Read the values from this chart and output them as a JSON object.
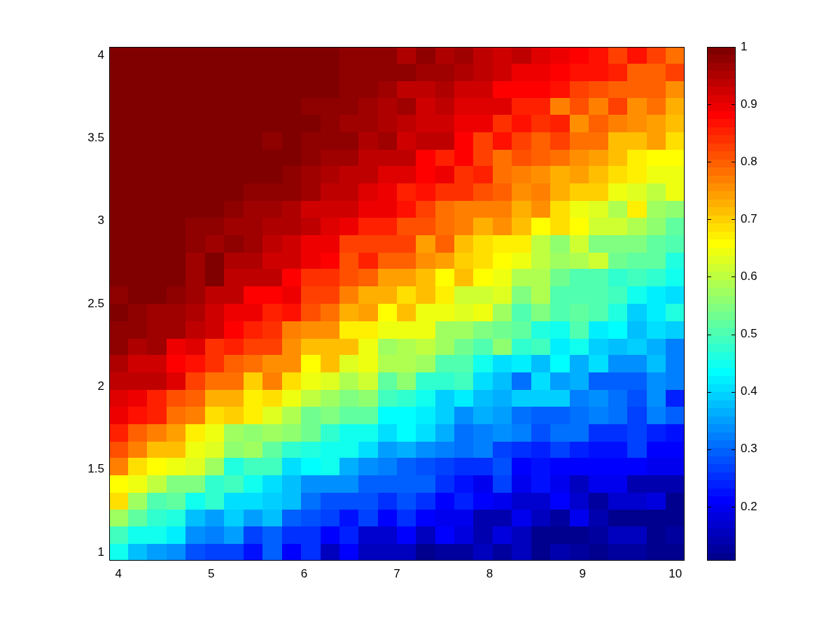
{
  "chart_data": {
    "type": "heatmap",
    "x": [
      4,
      4.21,
      4.41,
      4.62,
      4.83,
      5.03,
      5.24,
      5.45,
      5.66,
      5.86,
      6.07,
      6.28,
      6.48,
      6.69,
      6.9,
      7.1,
      7.31,
      7.52,
      7.72,
      7.93,
      8.14,
      8.34,
      8.55,
      8.76,
      8.97,
      9.17,
      9.38,
      9.59,
      9.79,
      10
    ],
    "y": [
      4,
      3.9,
      3.79,
      3.69,
      3.59,
      3.48,
      3.38,
      3.28,
      3.17,
      3.07,
      2.97,
      2.86,
      2.76,
      2.66,
      2.55,
      2.45,
      2.34,
      2.24,
      2.14,
      2.03,
      1.93,
      1.83,
      1.72,
      1.62,
      1.52,
      1.41,
      1.31,
      1.21,
      1.1,
      1
    ],
    "xlim": [
      3.9,
      10.1
    ],
    "xticks": [
      4,
      5,
      6,
      7,
      8,
      9,
      10
    ],
    "ylim": [
      0.95,
      4.05
    ],
    "yticks": [
      1,
      1.5,
      2,
      2.5,
      3,
      3.5,
      4
    ],
    "clim": [
      0.106,
      1
    ],
    "cticks": [
      0.2,
      0.3,
      0.4,
      0.5,
      0.6,
      0.7,
      0.8,
      0.9,
      1
    ],
    "cells": [
      [
        1,
        1,
        1,
        1,
        1,
        1,
        1,
        1,
        1,
        1,
        1,
        1,
        0.98,
        0.98,
        0.98,
        0.95,
        0.98,
        0.95,
        0.97,
        0.94,
        0.92,
        0.94,
        0.91,
        0.9,
        0.88,
        0.87,
        0.83,
        0.87,
        0.83,
        0.78
      ],
      [
        1,
        1,
        1,
        1,
        1,
        1,
        1,
        1,
        1,
        1,
        1,
        1,
        0.98,
        0.98,
        0.98,
        0.98,
        0.97,
        0.97,
        0.95,
        0.94,
        0.92,
        0.9,
        0.9,
        0.88,
        0.87,
        0.87,
        0.85,
        0.8,
        0.8,
        0.82
      ],
      [
        1,
        1,
        1,
        1,
        1,
        1,
        1,
        1,
        1,
        1,
        1,
        1,
        0.98,
        0.98,
        0.97,
        0.94,
        0.94,
        0.95,
        0.92,
        0.92,
        0.88,
        0.88,
        0.88,
        0.87,
        0.83,
        0.81,
        0.8,
        0.8,
        0.8,
        0.76
      ],
      [
        1,
        1,
        1,
        1,
        1,
        1,
        1,
        1,
        1,
        1,
        0.98,
        0.98,
        0.98,
        0.97,
        0.95,
        0.97,
        0.92,
        0.94,
        0.91,
        0.91,
        0.91,
        0.85,
        0.85,
        0.77,
        0.81,
        0.77,
        0.83,
        0.76,
        0.78,
        0.73
      ],
      [
        1,
        1,
        1,
        1,
        1,
        1,
        1,
        1,
        1,
        1,
        1,
        0.98,
        0.97,
        0.97,
        0.95,
        0.94,
        0.92,
        0.92,
        0.9,
        0.9,
        0.84,
        0.87,
        0.84,
        0.85,
        0.76,
        0.8,
        0.77,
        0.76,
        0.74,
        0.71
      ],
      [
        1,
        1,
        1,
        1,
        1,
        1,
        1,
        1,
        0.98,
        1,
        0.98,
        0.98,
        0.98,
        0.95,
        0.97,
        0.92,
        0.94,
        0.94,
        0.88,
        0.83,
        0.87,
        0.83,
        0.8,
        0.82,
        0.78,
        0.78,
        0.71,
        0.71,
        0.74,
        0.69
      ],
      [
        1,
        1,
        1,
        1,
        1,
        1,
        1,
        1,
        1,
        1,
        0.98,
        0.97,
        0.96,
        0.94,
        0.94,
        0.94,
        0.88,
        0.85,
        0.88,
        0.83,
        0.78,
        0.81,
        0.8,
        0.78,
        0.76,
        0.74,
        0.71,
        0.67,
        0.66,
        0.66
      ],
      [
        1,
        1,
        1,
        1,
        1,
        1,
        1,
        1,
        1,
        0.98,
        0.97,
        0.95,
        0.94,
        0.94,
        0.91,
        0.91,
        0.88,
        0.9,
        0.84,
        0.85,
        0.78,
        0.77,
        0.76,
        0.73,
        0.74,
        0.71,
        0.69,
        0.67,
        0.64,
        0.64
      ],
      [
        1,
        1,
        1,
        1,
        1,
        1,
        1,
        0.98,
        0.98,
        0.98,
        0.97,
        0.94,
        0.94,
        0.91,
        0.9,
        0.85,
        0.87,
        0.84,
        0.84,
        0.81,
        0.8,
        0.76,
        0.77,
        0.73,
        0.7,
        0.7,
        0.64,
        0.63,
        0.6,
        0.64
      ],
      [
        1,
        1,
        1,
        1,
        1,
        1,
        0.98,
        0.97,
        0.97,
        0.95,
        0.92,
        0.92,
        0.92,
        0.9,
        0.9,
        0.87,
        0.83,
        0.78,
        0.77,
        0.77,
        0.77,
        0.73,
        0.75,
        0.69,
        0.64,
        0.63,
        0.59,
        0.67,
        0.57,
        0.56
      ],
      [
        1,
        1,
        1,
        1,
        0.98,
        0.98,
        0.97,
        0.97,
        0.95,
        0.95,
        0.94,
        0.91,
        0.9,
        0.85,
        0.85,
        0.81,
        0.81,
        0.78,
        0.77,
        0.73,
        0.76,
        0.71,
        0.66,
        0.68,
        0.66,
        0.62,
        0.62,
        0.59,
        0.56,
        0.52
      ],
      [
        1,
        1,
        1,
        1,
        0.98,
        0.97,
        0.98,
        0.97,
        0.94,
        0.92,
        0.9,
        0.9,
        0.83,
        0.82,
        0.82,
        0.83,
        0.74,
        0.8,
        0.71,
        0.69,
        0.67,
        0.67,
        0.6,
        0.56,
        0.62,
        0.55,
        0.55,
        0.55,
        0.52,
        0.5
      ],
      [
        1,
        1,
        1,
        1,
        0.97,
        1,
        0.95,
        0.95,
        0.92,
        0.92,
        0.9,
        0.88,
        0.81,
        0.85,
        0.8,
        0.8,
        0.76,
        0.74,
        0.7,
        0.69,
        0.66,
        0.64,
        0.6,
        0.57,
        0.59,
        0.61,
        0.53,
        0.52,
        0.52,
        0.46
      ],
      [
        1,
        1,
        1,
        1,
        0.97,
        1,
        0.94,
        0.94,
        0.94,
        0.88,
        0.84,
        0.84,
        0.81,
        0.8,
        0.74,
        0.74,
        0.71,
        0.66,
        0.71,
        0.66,
        0.64,
        0.59,
        0.59,
        0.53,
        0.5,
        0.5,
        0.48,
        0.49,
        0.48,
        0.45
      ],
      [
        0.98,
        1,
        1,
        0.98,
        0.97,
        0.94,
        0.94,
        0.88,
        0.88,
        0.9,
        0.83,
        0.83,
        0.77,
        0.73,
        0.73,
        0.69,
        0.71,
        0.67,
        0.62,
        0.62,
        0.63,
        0.55,
        0.59,
        0.5,
        0.5,
        0.5,
        0.49,
        0.45,
        0.42,
        0.41
      ],
      [
        1,
        0.98,
        0.97,
        0.97,
        0.95,
        0.92,
        0.9,
        0.9,
        0.85,
        0.87,
        0.81,
        0.78,
        0.73,
        0.74,
        0.66,
        0.72,
        0.65,
        0.64,
        0.63,
        0.64,
        0.57,
        0.5,
        0.55,
        0.5,
        0.52,
        0.5,
        0.46,
        0.39,
        0.42,
        0.46
      ],
      [
        0.98,
        0.98,
        0.96,
        0.96,
        0.94,
        0.92,
        0.88,
        0.85,
        0.84,
        0.77,
        0.76,
        0.76,
        0.67,
        0.67,
        0.64,
        0.64,
        0.64,
        0.57,
        0.57,
        0.55,
        0.53,
        0.52,
        0.46,
        0.45,
        0.5,
        0.42,
        0.43,
        0.38,
        0.4,
        0.39
      ],
      [
        0.98,
        0.95,
        0.96,
        0.9,
        0.91,
        0.84,
        0.85,
        0.83,
        0.82,
        0.76,
        0.71,
        0.71,
        0.71,
        0.65,
        0.57,
        0.59,
        0.6,
        0.57,
        0.53,
        0.5,
        0.56,
        0.48,
        0.49,
        0.42,
        0.45,
        0.39,
        0.38,
        0.39,
        0.36,
        0.32
      ],
      [
        0.95,
        0.92,
        0.92,
        0.88,
        0.87,
        0.84,
        0.8,
        0.78,
        0.76,
        0.76,
        0.66,
        0.71,
        0.63,
        0.64,
        0.59,
        0.59,
        0.57,
        0.5,
        0.5,
        0.45,
        0.41,
        0.42,
        0.38,
        0.43,
        0.36,
        0.41,
        0.34,
        0.34,
        0.38,
        0.32
      ],
      [
        0.94,
        0.94,
        0.94,
        0.91,
        0.83,
        0.78,
        0.78,
        0.7,
        0.77,
        0.68,
        0.64,
        0.63,
        0.59,
        0.61,
        0.52,
        0.56,
        0.48,
        0.48,
        0.49,
        0.41,
        0.38,
        0.31,
        0.41,
        0.35,
        0.36,
        0.29,
        0.29,
        0.29,
        0.34,
        0.32
      ],
      [
        0.91,
        0.9,
        0.85,
        0.81,
        0.8,
        0.73,
        0.73,
        0.67,
        0.69,
        0.64,
        0.6,
        0.57,
        0.55,
        0.56,
        0.49,
        0.48,
        0.45,
        0.39,
        0.42,
        0.38,
        0.36,
        0.39,
        0.39,
        0.39,
        0.32,
        0.34,
        0.31,
        0.28,
        0.33,
        0.24
      ],
      [
        0.9,
        0.87,
        0.85,
        0.78,
        0.77,
        0.69,
        0.7,
        0.67,
        0.63,
        0.59,
        0.53,
        0.55,
        0.52,
        0.52,
        0.43,
        0.43,
        0.42,
        0.39,
        0.34,
        0.36,
        0.35,
        0.31,
        0.29,
        0.29,
        0.31,
        0.32,
        0.31,
        0.27,
        0.32,
        0.29
      ],
      [
        0.85,
        0.8,
        0.77,
        0.74,
        0.67,
        0.64,
        0.57,
        0.56,
        0.57,
        0.56,
        0.53,
        0.48,
        0.45,
        0.45,
        0.41,
        0.43,
        0.4,
        0.36,
        0.31,
        0.32,
        0.34,
        0.32,
        0.28,
        0.31,
        0.31,
        0.25,
        0.25,
        0.27,
        0.24,
        0.22
      ],
      [
        0.81,
        0.77,
        0.71,
        0.71,
        0.64,
        0.63,
        0.56,
        0.57,
        0.52,
        0.48,
        0.46,
        0.45,
        0.45,
        0.41,
        0.35,
        0.36,
        0.34,
        0.32,
        0.31,
        0.32,
        0.27,
        0.25,
        0.24,
        0.27,
        0.24,
        0.22,
        0.22,
        0.27,
        0.21,
        0.21
      ],
      [
        0.77,
        0.69,
        0.66,
        0.64,
        0.63,
        0.57,
        0.46,
        0.49,
        0.49,
        0.41,
        0.43,
        0.45,
        0.36,
        0.34,
        0.32,
        0.29,
        0.28,
        0.27,
        0.25,
        0.25,
        0.28,
        0.21,
        0.22,
        0.21,
        0.21,
        0.21,
        0.21,
        0.21,
        0.19,
        0.19
      ],
      [
        0.66,
        0.64,
        0.6,
        0.55,
        0.55,
        0.48,
        0.49,
        0.45,
        0.41,
        0.38,
        0.34,
        0.34,
        0.34,
        0.29,
        0.29,
        0.29,
        0.29,
        0.25,
        0.22,
        0.2,
        0.27,
        0.2,
        0.22,
        0.2,
        0.15,
        0.2,
        0.19,
        0.14,
        0.14,
        0.14
      ],
      [
        0.69,
        0.57,
        0.5,
        0.52,
        0.45,
        0.48,
        0.41,
        0.41,
        0.39,
        0.38,
        0.31,
        0.28,
        0.28,
        0.28,
        0.25,
        0.28,
        0.25,
        0.21,
        0.24,
        0.21,
        0.2,
        0.17,
        0.17,
        0.21,
        0.17,
        0.13,
        0.17,
        0.17,
        0.18,
        0.11
      ],
      [
        0.57,
        0.52,
        0.48,
        0.46,
        0.38,
        0.35,
        0.39,
        0.35,
        0.38,
        0.29,
        0.28,
        0.27,
        0.22,
        0.27,
        0.21,
        0.25,
        0.21,
        0.2,
        0.2,
        0.14,
        0.14,
        0.2,
        0.15,
        0.13,
        0.2,
        0.14,
        0.11,
        0.11,
        0.11,
        0.11
      ],
      [
        0.49,
        0.45,
        0.45,
        0.42,
        0.34,
        0.32,
        0.35,
        0.27,
        0.29,
        0.25,
        0.25,
        0.21,
        0.24,
        0.17,
        0.17,
        0.21,
        0.15,
        0.21,
        0.18,
        0.14,
        0.18,
        0.16,
        0.11,
        0.11,
        0.11,
        0.13,
        0.15,
        0.15,
        0.11,
        0.13
      ],
      [
        0.45,
        0.38,
        0.35,
        0.33,
        0.28,
        0.27,
        0.27,
        0.22,
        0.29,
        0.21,
        0.25,
        0.16,
        0.21,
        0.15,
        0.15,
        0.15,
        0.11,
        0.13,
        0.13,
        0.15,
        0.12,
        0.15,
        0.11,
        0.14,
        0.12,
        0.11,
        0.13,
        0.12,
        0.11,
        0.11
      ]
    ]
  }
}
